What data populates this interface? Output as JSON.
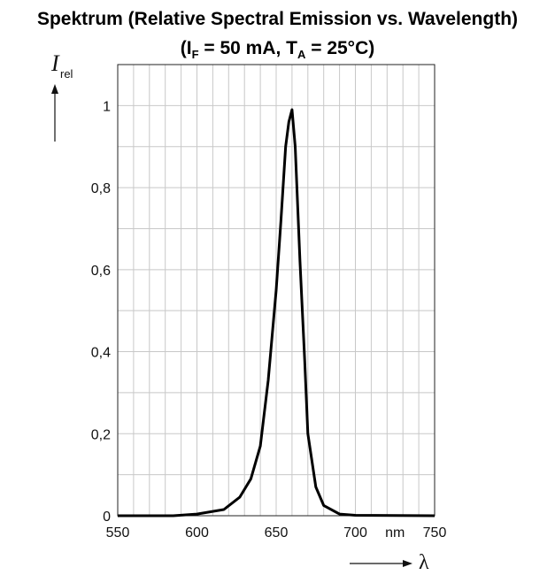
{
  "chart_data": {
    "type": "line",
    "title": "Spektrum (Relative Spectral Emission vs. Wavelength)",
    "subtitle": {
      "open": "(I",
      "sub_f": "F",
      "mid": " = 50 mA, T",
      "sub_a": "A",
      "close": " = 25°C)"
    },
    "ylabel": {
      "symbol": "I",
      "subscript": "rel"
    },
    "xlabel": "λ",
    "x_unit": "nm",
    "xlim": [
      550,
      750
    ],
    "ylim": [
      0,
      1.1
    ],
    "x_ticks": [
      "550",
      "600",
      "650",
      "700",
      "750"
    ],
    "y_ticks": [
      "0",
      "0,2",
      "0,4",
      "0,6",
      "0,8",
      "1"
    ],
    "grid": true,
    "series": [
      {
        "x": [
          550,
          585,
          600,
          617,
          627,
          634,
          640,
          645,
          650,
          653,
          656,
          658,
          660,
          662,
          665,
          668,
          670,
          675,
          680,
          690,
          700,
          750
        ],
        "y": [
          0,
          0,
          0.004,
          0.015,
          0.045,
          0.09,
          0.17,
          0.33,
          0.55,
          0.72,
          0.9,
          0.96,
          0.99,
          0.9,
          0.62,
          0.38,
          0.2,
          0.07,
          0.025,
          0.004,
          0.001,
          0
        ]
      }
    ]
  }
}
